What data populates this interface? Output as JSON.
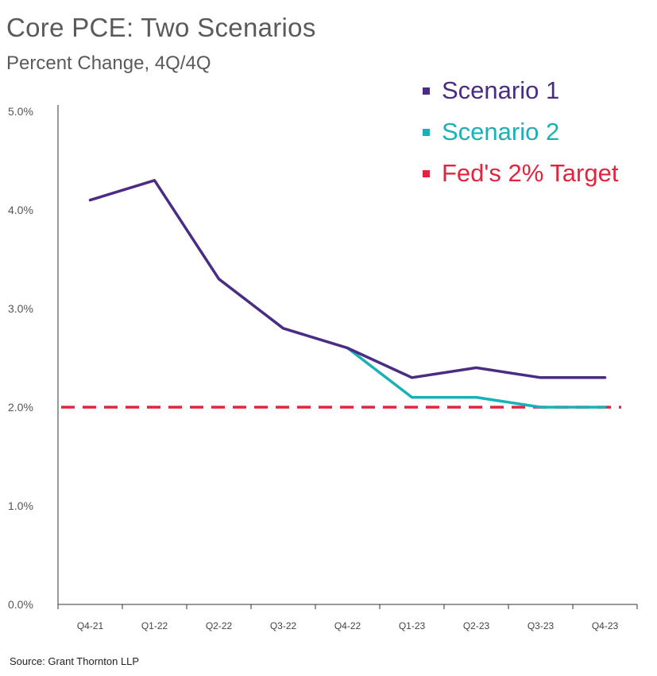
{
  "chart_data": {
    "type": "line",
    "title": "Core PCE: Two Scenarios",
    "subtitle": "Percent Change, 4Q/4Q",
    "categories": [
      "Q4-21",
      "Q1-22",
      "Q2-22",
      "Q3-22",
      "Q4-22",
      "Q1-23",
      "Q2-23",
      "Q3-23",
      "Q4-23"
    ],
    "yticks": [
      "0.0%",
      "1.0%",
      "2.0%",
      "3.0%",
      "4.0%",
      "5.0%"
    ],
    "ylim": [
      0,
      5
    ],
    "grid": false,
    "legend_position": "top-right",
    "series": [
      {
        "name": "Scenario 1",
        "color": "#4b2c85",
        "values": [
          4.1,
          4.3,
          3.3,
          2.8,
          2.6,
          2.3,
          2.4,
          2.3,
          2.3
        ]
      },
      {
        "name": "Scenario 2",
        "color": "#1ab0b8",
        "values": [
          null,
          null,
          null,
          null,
          2.6,
          2.1,
          2.1,
          2.0,
          2.0
        ]
      }
    ],
    "reference_line": {
      "name": "Fed's 2% Target",
      "value": 2.0,
      "color": "#e3243e",
      "style": "dashed"
    },
    "source": "Source: Grant Thornton LLP"
  }
}
